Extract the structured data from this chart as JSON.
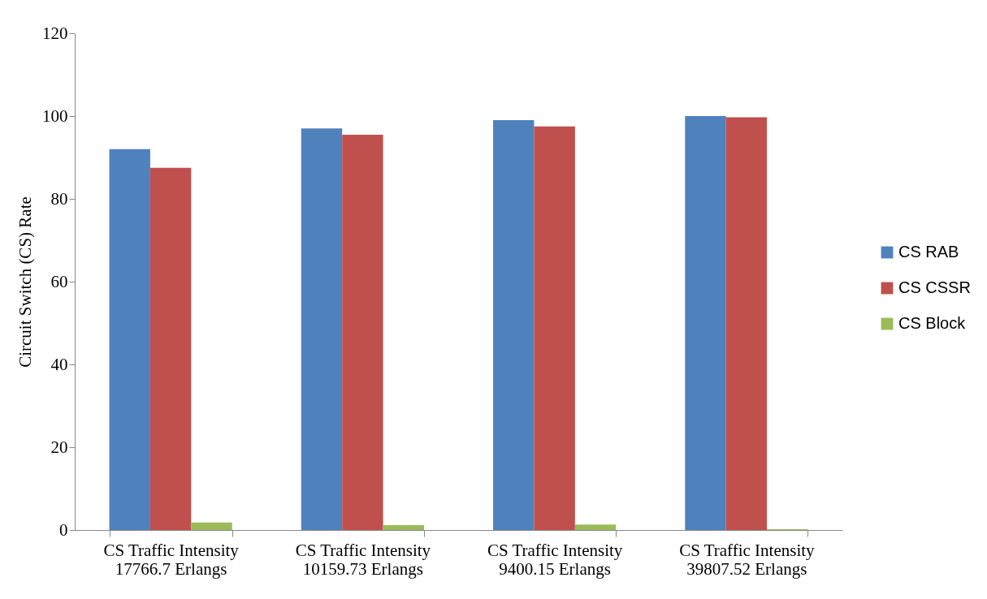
{
  "chart_data": {
    "type": "bar",
    "ylabel": "Circuit Switch (CS) Rate",
    "categories": [
      "CS Traffic Intensity\n17766.7 Erlangs",
      "CS Traffic Intensity\n10159.73 Erlangs",
      "CS Traffic Intensity\n9400.15 Erlangs",
      "CS Traffic Intensity\n39807.52 Erlangs"
    ],
    "series": [
      {
        "name": "CS RAB",
        "color": "#4f81bd",
        "values": [
          92,
          97,
          99,
          100
        ]
      },
      {
        "name": "CS CSSR",
        "color": "#c0504d",
        "values": [
          87.5,
          95.5,
          97.5,
          99.7
        ]
      },
      {
        "name": "CS Block",
        "color": "#9bbb59",
        "values": [
          1.8,
          1.2,
          1.3,
          0.2
        ]
      }
    ],
    "ylim": [
      0,
      120
    ],
    "yticks": [
      0,
      20,
      40,
      60,
      80,
      100,
      120
    ],
    "grid": false,
    "legend": "right"
  }
}
